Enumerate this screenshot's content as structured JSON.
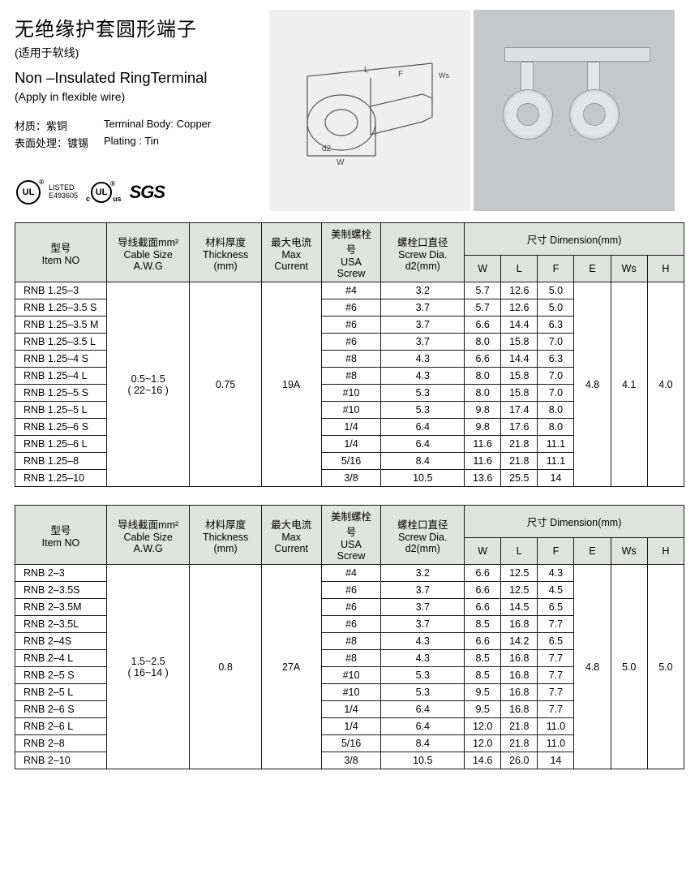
{
  "title_cn": "无绝缘护套圆形端子",
  "subtitle_cn": "(适用于软线)",
  "title_en": "Non –Insulated RingTerminal",
  "subtitle_en": "(Apply in flexible wire)",
  "material": {
    "cn1": "材质：紫铜",
    "en1": "Terminal Body: Copper",
    "cn2": "表面处理：镀锡",
    "en2": "Plating : Tin"
  },
  "cert": {
    "ul": "UL",
    "listed": "LISTED",
    "listed_no": "E493605",
    "c": "c",
    "us": "us",
    "sgs": "SGS"
  },
  "headers": {
    "item_cn": "型号",
    "item_en": "Item NO",
    "cable_cn": "导线截面mm²",
    "cable_en": "Cable Size A.W.G",
    "thick_cn": "材料厚度",
    "thick_en": "Thickness (mm)",
    "max_cn": "最大电流",
    "max_en": "Max Current",
    "usa_cn": "美制螺栓号",
    "usa_en": "USA Screw",
    "screw_cn": "螺栓口直径",
    "screw_en": "Screw Dia. d2(mm)",
    "dim_full": "尺寸 Dimension(mm)",
    "W": "W",
    "L": "L",
    "F": "F",
    "E": "E",
    "Ws": "Ws",
    "H": "H"
  },
  "table1": {
    "cable": "0.5~1.5",
    "awg": "( 22~16 )",
    "thickness": "0.75",
    "max": "19A",
    "E": "4.8",
    "Ws": "4.1",
    "H": "4.0",
    "rows": [
      {
        "item": "RNB 1.25–3",
        "usa": "#4",
        "d2": "3.2",
        "W": "5.7",
        "L": "12.6",
        "F": "5.0"
      },
      {
        "item": "RNB 1.25–3.5 S",
        "usa": "#6",
        "d2": "3.7",
        "W": "5.7",
        "L": "12.6",
        "F": "5.0"
      },
      {
        "item": "RNB 1.25–3.5 M",
        "usa": "#6",
        "d2": "3.7",
        "W": "6.6",
        "L": "14.4",
        "F": "6.3"
      },
      {
        "item": "RNB 1.25–3.5 L",
        "usa": "#6",
        "d2": "3.7",
        "W": "8.0",
        "L": "15.8",
        "F": "7.0"
      },
      {
        "item": "RNB 1.25–4 S",
        "usa": "#8",
        "d2": "4.3",
        "W": "6.6",
        "L": "14.4",
        "F": "6.3"
      },
      {
        "item": "RNB 1.25–4 L",
        "usa": "#8",
        "d2": "4.3",
        "W": "8.0",
        "L": "15.8",
        "F": "7.0"
      },
      {
        "item": "RNB 1.25–5 S",
        "usa": "#10",
        "d2": "5.3",
        "W": "8.0",
        "L": "15.8",
        "F": "7.0"
      },
      {
        "item": "RNB 1.25–5 L",
        "usa": "#10",
        "d2": "5.3",
        "W": "9.8",
        "L": "17.4",
        "F": "8.0"
      },
      {
        "item": "RNB 1.25–6 S",
        "usa": "1/4",
        "d2": "6.4",
        "W": "9.8",
        "L": "17.6",
        "F": "8.0"
      },
      {
        "item": "RNB 1.25–6 L",
        "usa": "1/4",
        "d2": "6.4",
        "W": "11.6",
        "L": "21.8",
        "F": "11.1"
      },
      {
        "item": "RNB 1.25–8",
        "usa": "5/16",
        "d2": "8.4",
        "W": "11.6",
        "L": "21.8",
        "F": "11.1"
      },
      {
        "item": "RNB 1.25–10",
        "usa": "3/8",
        "d2": "10.5",
        "W": "13.6",
        "L": "25.5",
        "F": "14"
      }
    ]
  },
  "table2": {
    "cable": "1.5~2.5",
    "awg": "( 16~14 )",
    "thickness": "0.8",
    "max": "27A",
    "E": "4.8",
    "Ws": "5.0",
    "H": "5.0",
    "rows": [
      {
        "item": "RNB 2–3",
        "usa": "#4",
        "d2": "3.2",
        "W": "6.6",
        "L": "12.5",
        "F": "4.3"
      },
      {
        "item": "RNB 2–3.5S",
        "usa": "#6",
        "d2": "3.7",
        "W": "6.6",
        "L": "12.5",
        "F": "4.5"
      },
      {
        "item": "RNB 2–3.5M",
        "usa": "#6",
        "d2": "3.7",
        "W": "6.6",
        "L": "14.5",
        "F": "6.5"
      },
      {
        "item": "RNB 2–3.5L",
        "usa": "#6",
        "d2": "3.7",
        "W": "8.5",
        "L": "16.8",
        "F": "7.7"
      },
      {
        "item": "RNB 2–4S",
        "usa": "#8",
        "d2": "4.3",
        "W": "6.6",
        "L": "14.2",
        "F": "6.5"
      },
      {
        "item": "RNB  2–4 L",
        "usa": "#8",
        "d2": "4.3",
        "W": "8.5",
        "L": "16.8",
        "F": "7.7"
      },
      {
        "item": "RNB 2–5 S",
        "usa": "#10",
        "d2": "5.3",
        "W": "8.5",
        "L": "16.8",
        "F": "7.7"
      },
      {
        "item": "RNB 2–5 L",
        "usa": "#10",
        "d2": "5.3",
        "W": "9.5",
        "L": "16.8",
        "F": "7.7"
      },
      {
        "item": "RNB 2–6 S",
        "usa": "1/4",
        "d2": "6.4",
        "W": "9.5",
        "L": "16.8",
        "F": "7.7"
      },
      {
        "item": "RNB 2–6 L",
        "usa": "1/4",
        "d2": "6.4",
        "W": "12.0",
        "L": "21.8",
        "F": "11.0"
      },
      {
        "item": "RNB 2–8",
        "usa": "5/16",
        "d2": "8.4",
        "W": "12.0",
        "L": "21.8",
        "F": "11.0"
      },
      {
        "item": "RNB 2–10",
        "usa": "3/8",
        "d2": "10.5",
        "W": "14.6",
        "L": "26.0",
        "F": "14"
      }
    ]
  },
  "diagram_labels": {
    "L": "L",
    "F": "F",
    "Ws": "Ws",
    "W": "W",
    "d2": "d2"
  }
}
